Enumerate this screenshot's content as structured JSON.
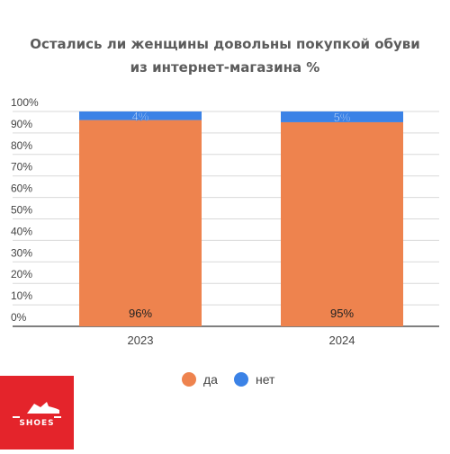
{
  "chart_data": {
    "type": "bar",
    "stacked": true,
    "title_lines": [
      "Остались ли женщины довольны покупкой обуви",
      "из интернет-магазина  %"
    ],
    "categories": [
      "2023",
      "2024"
    ],
    "series": [
      {
        "name": "да",
        "color": "#ee834e",
        "values": [
          96,
          95
        ],
        "labels": [
          "96%",
          "95%"
        ]
      },
      {
        "name": "нет",
        "color": "#3b82e6",
        "values": [
          4,
          5
        ],
        "labels": [
          "4%",
          "5%"
        ]
      }
    ],
    "yticks": [
      "0%",
      "10%",
      "20%",
      "30%",
      "40%",
      "50%",
      "60%",
      "70%",
      "80%",
      "90%",
      "100%"
    ],
    "ylim": [
      0,
      100
    ],
    "grid": true,
    "legend_position": "bottom-center"
  },
  "logo": {
    "text": "SHOES",
    "color": "#e4242b"
  }
}
